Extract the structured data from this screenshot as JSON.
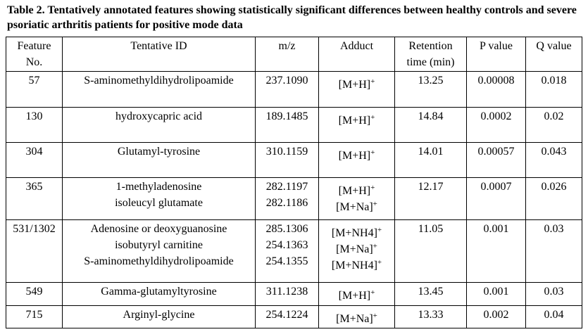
{
  "title": "Table 2. Tentatively annotated features showing statistically significant differences between healthy controls and severe psoriatic arthritis patients for positive mode data",
  "table": {
    "header": [
      [
        "Feature",
        "No."
      ],
      [
        "Tentative ID"
      ],
      [
        "m/z"
      ],
      [
        "Adduct"
      ],
      [
        "Retention",
        "time (min)"
      ],
      [
        "P value"
      ],
      [
        "Q value"
      ]
    ],
    "rows": [
      {
        "feature": "57",
        "ids": [
          "S-aminomethyldihydrolipoamide"
        ],
        "mz": [
          "237.1090"
        ],
        "adducts": [
          {
            "ion": "[M+H]",
            "charge": "+"
          }
        ],
        "retention": "13.25",
        "p": "0.00008",
        "q": "0.018"
      },
      {
        "feature": "130",
        "ids": [
          "hydroxycapric acid"
        ],
        "mz": [
          "189.1485"
        ],
        "adducts": [
          {
            "ion": "[M+H]",
            "charge": "+"
          }
        ],
        "retention": "14.84",
        "p": "0.0002",
        "q": "0.02"
      },
      {
        "feature": "304",
        "ids": [
          "Glutamyl-tyrosine"
        ],
        "mz": [
          "310.1159"
        ],
        "adducts": [
          {
            "ion": "[M+H]",
            "charge": "+"
          }
        ],
        "retention": "14.01",
        "p": "0.00057",
        "q": "0.043"
      },
      {
        "feature": "365",
        "ids": [
          "1-methyladenosine",
          "isoleucyl glutamate"
        ],
        "mz": [
          "282.1197",
          "282.1186"
        ],
        "adducts": [
          {
            "ion": "[M+H]",
            "charge": "+"
          },
          {
            "ion": "[M+Na]",
            "charge": "+"
          }
        ],
        "retention": "12.17",
        "p": "0.0007",
        "q": "0.026"
      },
      {
        "feature": "531/1302",
        "ids": [
          "Adenosine or deoxyguanosine",
          "isobutyryl carnitine",
          "S-aminomethyldihydrolipoamide"
        ],
        "mz": [
          "285.1306",
          "254.1363",
          "254.1355"
        ],
        "adducts": [
          {
            "ion": "[M+NH4]",
            "charge": "+"
          },
          {
            "ion": "[M+Na]",
            "charge": "+"
          },
          {
            "ion": "[M+NH4]",
            "charge": "+"
          }
        ],
        "retention": "11.05",
        "p": "0.001",
        "q": "0.03"
      },
      {
        "feature": "549",
        "ids": [
          "Gamma-glutamyltyrosine"
        ],
        "mz": [
          "311.1238"
        ],
        "adducts": [
          {
            "ion": "[M+H]",
            "charge": "+"
          }
        ],
        "retention": "13.45",
        "p": "0.001",
        "q": "0.03"
      },
      {
        "feature": "715",
        "ids": [
          "Arginyl-glycine"
        ],
        "mz": [
          "254.1224"
        ],
        "adducts": [
          {
            "ion": "[M+Na]",
            "charge": "+"
          }
        ],
        "retention": "13.33",
        "p": "0.002",
        "q": "0.04"
      }
    ]
  }
}
